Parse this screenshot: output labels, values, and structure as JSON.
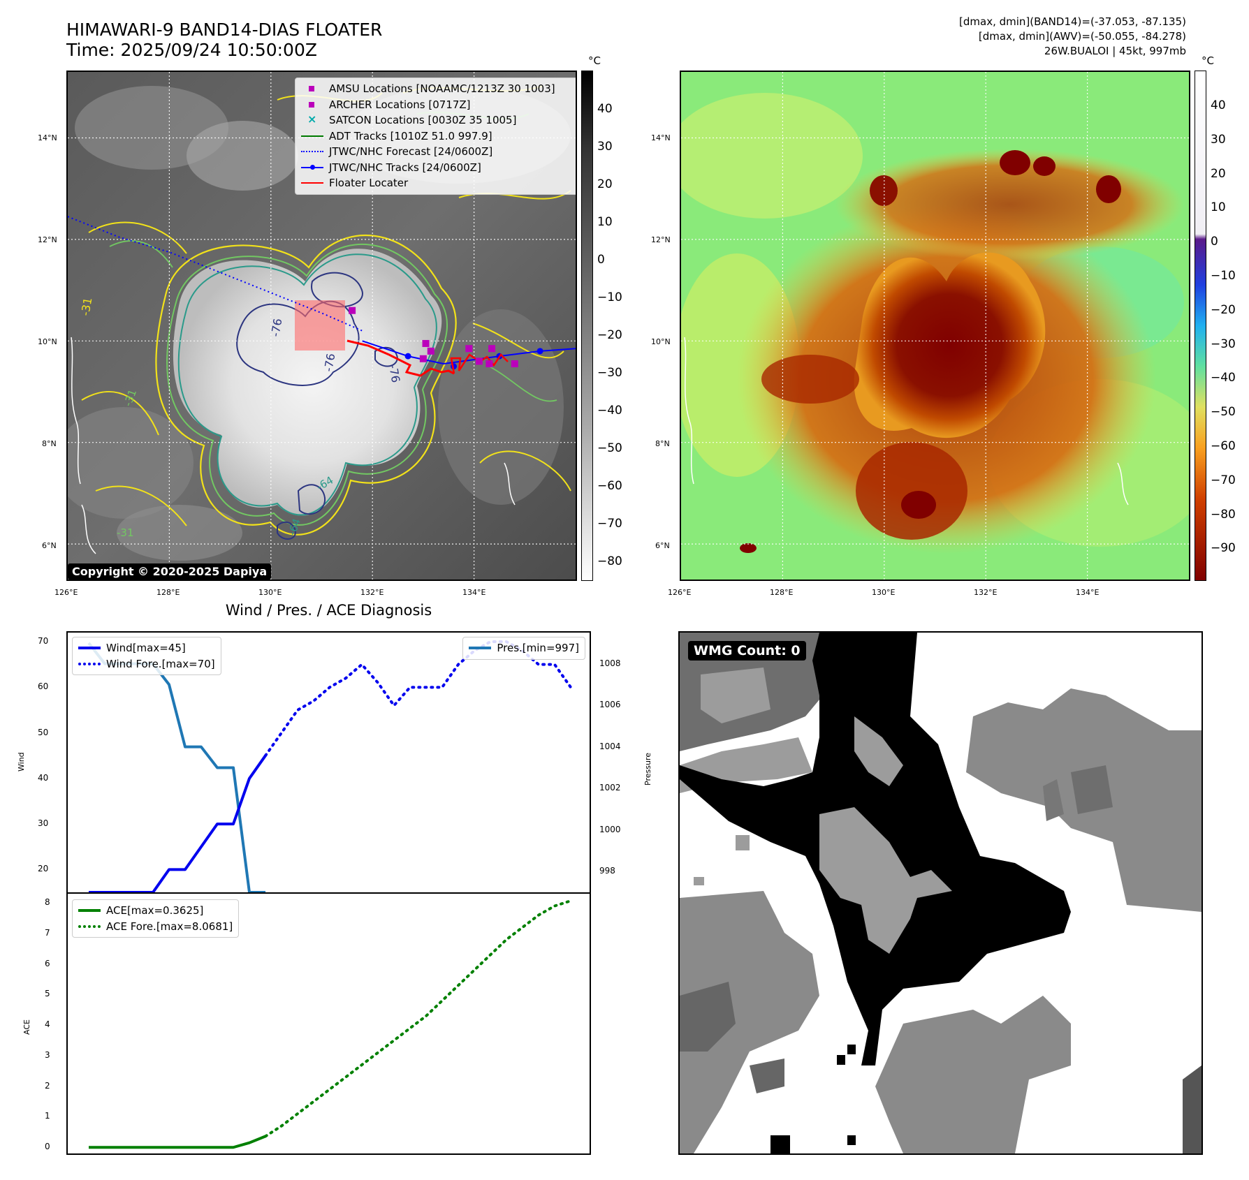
{
  "header": {
    "title_line1": "HIMAWARI-9 BAND14-DIAS FLOATER",
    "title_line2": "Time: 2025/09/24 10:50:00Z",
    "stats_line1": "[dmax, dmin](BAND14)=(-37.053, -87.135)",
    "stats_line2": "[dmax, dmin](AWV)=(-50.055, -84.278)",
    "stats_line3": "26W.BUALOI | 45kt, 997mb"
  },
  "map_axes": {
    "lon_labels": [
      "126°E",
      "128°E",
      "130°E",
      "132°E",
      "134°E"
    ],
    "lat_labels": [
      "14°N",
      "12°N",
      "10°N",
      "8°N",
      "6°N"
    ],
    "lon_range": [
      126,
      136
    ],
    "lat_range": [
      5.3,
      15.3
    ]
  },
  "left_map": {
    "colorbar_unit": "°C",
    "colorbar_ticks": [
      "40",
      "30",
      "20",
      "10",
      "0",
      "−10",
      "−20",
      "−30",
      "−40",
      "−50",
      "−60",
      "−70",
      "−80"
    ],
    "copyright": "Copyright © 2020-2025 Dapiya",
    "contour_labels": [
      "-31",
      "-76",
      "-76",
      "-76",
      "-64",
      "-64",
      "-31",
      "-31"
    ],
    "colors": {
      "contour_yellow": "#f2e21a",
      "contour_green": "#72c862",
      "contour_teal": "#2a9a8a",
      "contour_navy": "#2c3580",
      "floater": "#ff0000",
      "amsu": "#bb00bb",
      "jtwc": "#0000ff",
      "adt": "#007a00"
    },
    "legend": [
      {
        "label": "AMSU Locations [NOAAMC/1213Z 30 1003]",
        "symbol": "square",
        "color": "#bb00bb"
      },
      {
        "label": "ARCHER Locations [0717Z]",
        "symbol": "square",
        "color": "#bb00bb"
      },
      {
        "label": "SATCON Locations [0030Z 35 1005]",
        "symbol": "x",
        "color": "#00aaaa"
      },
      {
        "label": "ADT Tracks [1010Z 51.0 997.9]",
        "symbol": "line",
        "color": "#007a00"
      },
      {
        "label": "JTWC/NHC Forecast [24/0600Z]",
        "symbol": "dotted",
        "color": "#0000ff"
      },
      {
        "label": "JTWC/NHC Tracks [24/0600Z]",
        "symbol": "line-dot",
        "color": "#0000ff"
      },
      {
        "label": "Floater Locater",
        "symbol": "line",
        "color": "#ff0000"
      }
    ],
    "forecast_track": [
      [
        126.0,
        12.45
      ],
      [
        127.0,
        12.05
      ],
      [
        128.0,
        11.75
      ],
      [
        129.0,
        11.35
      ],
      [
        130.0,
        10.95
      ],
      [
        131.0,
        10.55
      ],
      [
        131.8,
        10.2
      ]
    ],
    "best_track": [
      [
        131.8,
        10.0
      ],
      [
        132.7,
        9.7
      ],
      [
        133.4,
        9.55
      ],
      [
        134.5,
        9.7
      ],
      [
        135.3,
        9.8
      ],
      [
        136.0,
        9.85
      ]
    ],
    "best_track_points": [
      [
        132.7,
        9.7
      ],
      [
        133.6,
        9.5
      ],
      [
        134.5,
        9.7
      ],
      [
        135.3,
        9.8
      ]
    ],
    "amsu_points": [
      [
        131.6,
        10.6
      ],
      [
        133.05,
        9.95
      ],
      [
        133.15,
        9.8
      ],
      [
        133.0,
        9.65
      ],
      [
        134.1,
        9.6
      ],
      [
        134.3,
        9.55
      ],
      [
        134.8,
        9.55
      ],
      [
        134.35,
        9.85
      ],
      [
        133.9,
        9.85
      ]
    ]
  },
  "right_map": {
    "colorbar_unit": "°C",
    "colorbar_ticks": [
      "40",
      "30",
      "20",
      "10",
      "0",
      "−10",
      "−20",
      "−30",
      "−40",
      "−50",
      "−60",
      "−70",
      "−80",
      "−90"
    ]
  },
  "diagnosis": {
    "title": "Wind / Pres. / ACE Diagnosis",
    "wind_ylabel": "Wind",
    "pres_ylabel": "Pressure",
    "ace_ylabel": "ACE",
    "wind_ticks": [
      "70",
      "60",
      "50",
      "40",
      "30",
      "20"
    ],
    "pres_ticks": [
      "1008",
      "1006",
      "1004",
      "1002",
      "1000",
      "998"
    ],
    "ace_ticks": [
      "8",
      "7",
      "6",
      "5",
      "4",
      "3",
      "2",
      "1",
      "0"
    ],
    "wind_legend": [
      {
        "label": "Wind[max=45]",
        "style": "solid",
        "color": "#0000ee"
      },
      {
        "label": "Wind Fore.[max=70]",
        "style": "dotted",
        "color": "#0000ee"
      }
    ],
    "pres_legend": [
      {
        "label": "Pres.[min=997]",
        "style": "solid",
        "color": "#1f77b4"
      }
    ],
    "ace_legend": [
      {
        "label": "ACE[max=0.3625]",
        "style": "solid",
        "color": "#008000"
      },
      {
        "label": "ACE Fore.[max=8.0681]",
        "style": "dotted",
        "color": "#008000"
      }
    ]
  },
  "chart_data": [
    {
      "type": "line",
      "ylabel": "Wind",
      "ylim": [
        15,
        72
      ],
      "x": [
        0,
        1,
        2,
        3,
        4,
        5,
        6,
        7,
        8,
        9,
        10,
        11,
        12,
        13,
        14,
        15,
        16,
        17,
        18,
        19,
        20,
        21,
        22,
        23,
        24,
        25,
        26,
        27,
        28,
        29,
        30
      ],
      "series": [
        {
          "name": "Wind[max=45]",
          "x": [
            0,
            1,
            2,
            3,
            4,
            5,
            6,
            7,
            8,
            9,
            10,
            11
          ],
          "values": [
            15,
            15,
            15,
            15,
            15,
            20,
            20,
            25,
            30,
            30,
            40,
            45
          ]
        },
        {
          "name": "Wind Fore.[max=70]",
          "x": [
            11,
            12,
            13,
            14,
            15,
            16,
            17,
            18,
            19,
            20,
            21,
            22,
            23,
            24,
            25,
            26,
            27,
            28,
            29,
            30
          ],
          "values": [
            45,
            50,
            55,
            57,
            60,
            62,
            65,
            61,
            56,
            60,
            60,
            60,
            65,
            68,
            70,
            70,
            68,
            65,
            65,
            60
          ]
        }
      ]
    },
    {
      "type": "line",
      "ylabel": "Pressure",
      "ylim": [
        997,
        1009.5
      ],
      "series": [
        {
          "name": "Pres.[min=997]",
          "x": [
            0,
            1,
            2,
            3,
            4,
            5,
            6,
            7,
            8,
            9,
            10,
            11
          ],
          "values": [
            1009,
            1008,
            1008,
            1008,
            1008,
            1007,
            1004,
            1004,
            1003,
            1003,
            997,
            997
          ]
        }
      ]
    },
    {
      "type": "line",
      "ylabel": "ACE",
      "ylim": [
        -0.2,
        8.3
      ],
      "series": [
        {
          "name": "ACE[max=0.3625]",
          "x": [
            0,
            1,
            2,
            3,
            4,
            5,
            6,
            7,
            8,
            9,
            10,
            11
          ],
          "values": [
            0,
            0,
            0,
            0,
            0,
            0,
            0,
            0,
            0,
            0,
            0.15,
            0.3625
          ]
        },
        {
          "name": "ACE Fore.[max=8.0681]",
          "x": [
            11,
            12,
            13,
            14,
            15,
            16,
            17,
            18,
            19,
            20,
            21,
            22,
            23,
            24,
            25,
            26,
            27,
            28,
            29,
            30
          ],
          "values": [
            0.3625,
            0.7,
            1.1,
            1.5,
            1.9,
            2.3,
            2.7,
            3.1,
            3.5,
            3.9,
            4.3,
            4.8,
            5.3,
            5.8,
            6.3,
            6.8,
            7.2,
            7.6,
            7.9,
            8.0681
          ]
        }
      ]
    }
  ],
  "wmg": {
    "label": "WMG Count: 0"
  }
}
